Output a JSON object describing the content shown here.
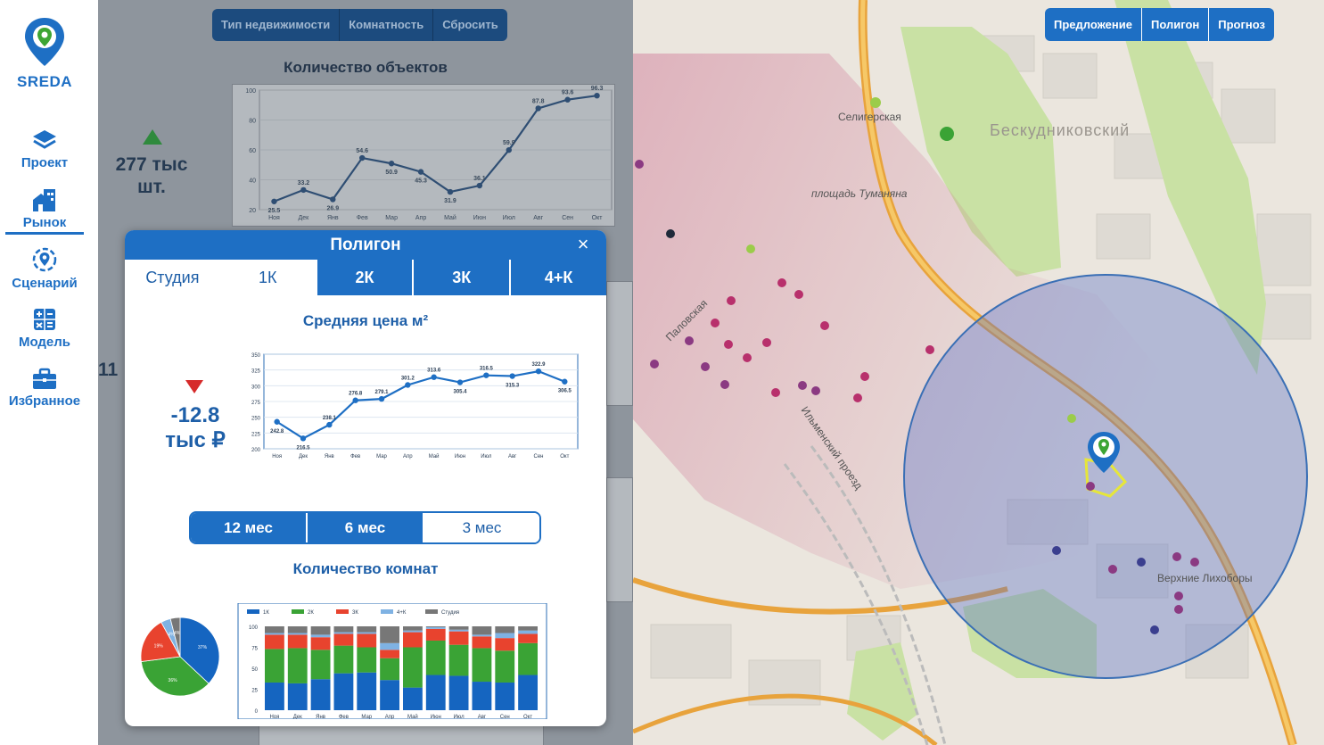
{
  "app": {
    "logo_text": "SREDA"
  },
  "sidebar": {
    "items": [
      {
        "label": "Проект",
        "icon": "layers-icon"
      },
      {
        "label": "Рынок",
        "icon": "market-buildings-icon",
        "active": true
      },
      {
        "label": "Сценарий",
        "icon": "target-pin-icon"
      },
      {
        "label": "Модель",
        "icon": "calculator-icon"
      },
      {
        "label": "Избранное",
        "icon": "briefcase-icon"
      }
    ]
  },
  "dashboard": {
    "filters": [
      "Тип недвижимости",
      "Комнатность",
      "Сбросить"
    ],
    "objects_title": "Количество объектов",
    "objects_stat_line1": "277 тыс",
    "objects_stat_line2": "шт.",
    "partial_stat": "11"
  },
  "objects_chart": {
    "type": "line",
    "categories": [
      "Ноя",
      "Дек",
      "Янв",
      "Фев",
      "Мар",
      "Апр",
      "Май",
      "Июн",
      "Июл",
      "Авг",
      "Сен",
      "Окт"
    ],
    "values": [
      25.5,
      33.2,
      26.9,
      54.6,
      50.9,
      45.3,
      31.9,
      36.1,
      59.9,
      87.8,
      93.6,
      96.3
    ],
    "ylim": [
      20,
      100
    ],
    "yticks": [
      20,
      40,
      60,
      80,
      100
    ]
  },
  "modal": {
    "title": "Полигон",
    "close_label": "×",
    "tabs": [
      "Студия",
      "1К",
      "2К",
      "3К",
      "4+К"
    ],
    "price_title": "Средняя цена м²",
    "price_change_line1": "-12.8",
    "price_change_line2": "тыс ₽",
    "periods": [
      "12 мес",
      "6 мес",
      "3 мес"
    ],
    "rooms_title": "Количество комнат"
  },
  "chart_data": [
    {
      "type": "line",
      "title": "Средняя цена м²",
      "categories": [
        "Ноя",
        "Дек",
        "Янв",
        "Фев",
        "Мар",
        "Апр",
        "Май",
        "Июн",
        "Июл",
        "Авг",
        "Сен",
        "Окт"
      ],
      "values": [
        242.8,
        216.5,
        238.1,
        276.8,
        279.1,
        301.2,
        313.6,
        305.4,
        316.5,
        315.3,
        322.9,
        306.5
      ],
      "ylim": [
        200,
        350
      ],
      "yticks": [
        200,
        225,
        250,
        275,
        300,
        325,
        350
      ],
      "grid": true
    },
    {
      "type": "bar",
      "stacked": true,
      "title": "Количество комнат",
      "categories": [
        "Ноя",
        "Дек",
        "Янв",
        "Фев",
        "Мар",
        "Апр",
        "Май",
        "Июн",
        "Июл",
        "Авг",
        "Сен",
        "Окт"
      ],
      "series": [
        {
          "name": "1К",
          "color": "#1565c0",
          "values": [
            33,
            32,
            37,
            44,
            45,
            36,
            27,
            42,
            41,
            34,
            33,
            42
          ]
        },
        {
          "name": "2К",
          "color": "#3aa335",
          "values": [
            40,
            42,
            35,
            33,
            30,
            26,
            48,
            41,
            37,
            40,
            38,
            38
          ]
        },
        {
          "name": "3К",
          "color": "#e8432e",
          "values": [
            17,
            16,
            15,
            14,
            16,
            10,
            18,
            14,
            16,
            14,
            15,
            11
          ]
        },
        {
          "name": "4+К",
          "color": "#7fb2e3",
          "values": [
            2,
            2,
            3,
            2,
            2,
            8,
            2,
            2,
            2,
            2,
            6,
            4
          ]
        },
        {
          "name": "Студия",
          "color": "#777777",
          "values": [
            8,
            8,
            10,
            7,
            7,
            20,
            5,
            1,
            4,
            10,
            8,
            5
          ]
        }
      ],
      "ylim": [
        0,
        100
      ],
      "yticks": [
        0,
        25,
        50,
        75,
        100
      ],
      "legend": "top"
    },
    {
      "type": "pie",
      "labels": [
        "1К",
        "2К",
        "3К",
        "4+К",
        "Студия"
      ],
      "values": [
        37,
        36,
        19,
        4,
        4
      ],
      "colors": [
        "#1565c0",
        "#3aa335",
        "#e8432e",
        "#7fb2e3",
        "#777777"
      ]
    }
  ],
  "map": {
    "buttons": [
      "Предложение",
      "Полигон",
      "Прогноз"
    ],
    "labels": [
      "Селигерская",
      "Бескудниковский",
      "площадь Туманяна",
      "Паловская",
      "Ильменский проезд",
      "Верхние Лихоборы"
    ]
  }
}
